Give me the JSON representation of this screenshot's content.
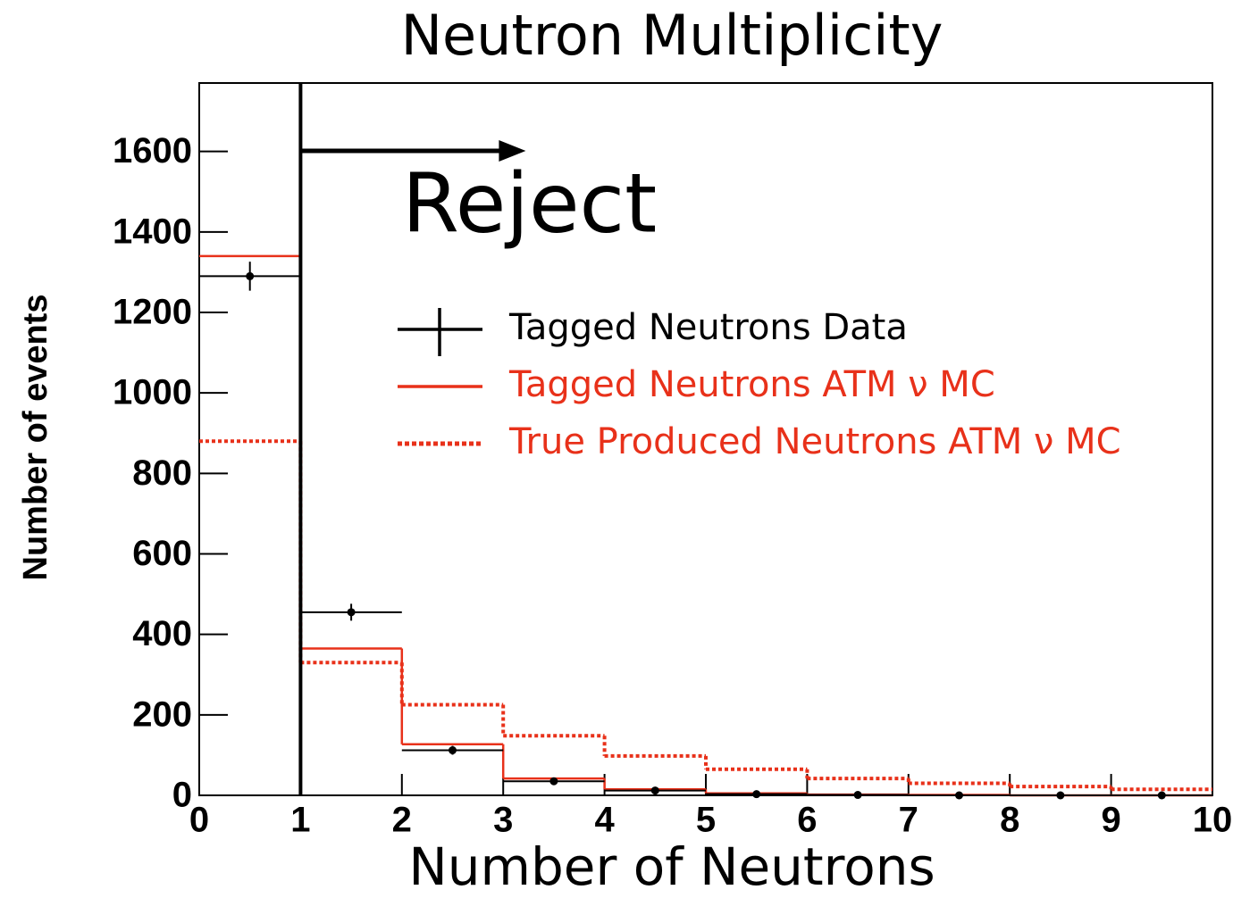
{
  "chart_data": {
    "type": "histogram",
    "title": "Neutron Multiplicity",
    "x_label": "Number of Neutrons",
    "y_label": "Number of events",
    "bins": [
      0,
      1,
      2,
      3,
      4,
      5,
      6,
      7,
      8,
      9,
      10
    ],
    "xlim": [
      0,
      10
    ],
    "ylim": [
      0,
      1770
    ],
    "xticks": [
      0,
      1,
      2,
      3,
      4,
      5,
      6,
      7,
      8,
      9,
      10
    ],
    "yticks": [
      0,
      200,
      400,
      600,
      800,
      1000,
      1200,
      1400,
      1600
    ],
    "cut_x": 1,
    "annotation": "Reject",
    "legend": "upper right",
    "series": [
      {
        "name": "Tagged Neutrons Data",
        "color": "#000000",
        "style": "points",
        "values": [
          1290,
          455,
          112,
          35,
          12,
          3,
          1,
          0,
          0,
          0
        ],
        "errors": [
          36,
          21,
          11,
          6,
          3,
          2,
          1,
          0,
          0,
          0
        ]
      },
      {
        "name": "Tagged Neutrons ATM ν MC",
        "color": "#e8311a",
        "style": "step",
        "values": [
          1340,
          365,
          127,
          42,
          15,
          5,
          2,
          1,
          0,
          0
        ]
      },
      {
        "name": "True Produced Neutrons ATM ν MC",
        "color": "#e8311a",
        "style": "dotted-step",
        "values": [
          880,
          330,
          225,
          148,
          98,
          65,
          42,
          30,
          22,
          15
        ]
      }
    ]
  }
}
